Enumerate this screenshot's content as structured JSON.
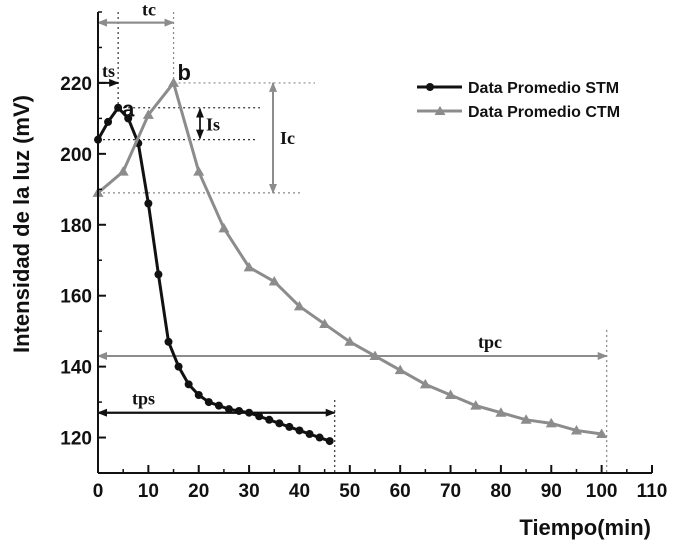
{
  "chart_data": {
    "type": "line",
    "title": "",
    "xlabel": "Tiempo(min)",
    "ylabel": "Intensidad de la luz (mV)",
    "xlim": [
      0,
      110
    ],
    "ylim": [
      110,
      240
    ],
    "x_ticks": [
      0,
      10,
      20,
      30,
      40,
      50,
      60,
      70,
      80,
      90,
      100,
      110
    ],
    "y_ticks": [
      120,
      140,
      160,
      180,
      200,
      220
    ],
    "legend_position": "top-right",
    "grid": false,
    "series": [
      {
        "name": "Data Promedio STM",
        "color": "#111111",
        "marker": "circle",
        "x": [
          0,
          2,
          4,
          6,
          8,
          10,
          12,
          14,
          16,
          18,
          20,
          22,
          24,
          26,
          28,
          30,
          32,
          34,
          36,
          38,
          40,
          42,
          44,
          46
        ],
        "y": [
          204,
          209,
          213,
          210,
          203,
          186,
          166,
          147,
          140,
          135,
          132,
          130,
          129,
          128,
          127.5,
          127,
          126,
          125,
          124,
          123,
          122,
          121,
          120,
          119
        ]
      },
      {
        "name": "Data Promedio CTM",
        "color": "#8c8c8c",
        "marker": "triangle",
        "x": [
          0,
          5,
          10,
          15,
          20,
          25,
          30,
          35,
          40,
          45,
          50,
          55,
          60,
          65,
          70,
          75,
          80,
          85,
          90,
          95,
          100
        ],
        "y": [
          189,
          195,
          211,
          220,
          195,
          179,
          168,
          164,
          157,
          152,
          147,
          143,
          139,
          135,
          132,
          129,
          127,
          125,
          124,
          122,
          121
        ]
      }
    ],
    "annotations": {
      "point_a": "a",
      "point_b": "b",
      "ts": "ts",
      "tc": "tc",
      "is": "Is",
      "ic": "Ic",
      "tps": "tps",
      "tpc": "tpc"
    }
  }
}
